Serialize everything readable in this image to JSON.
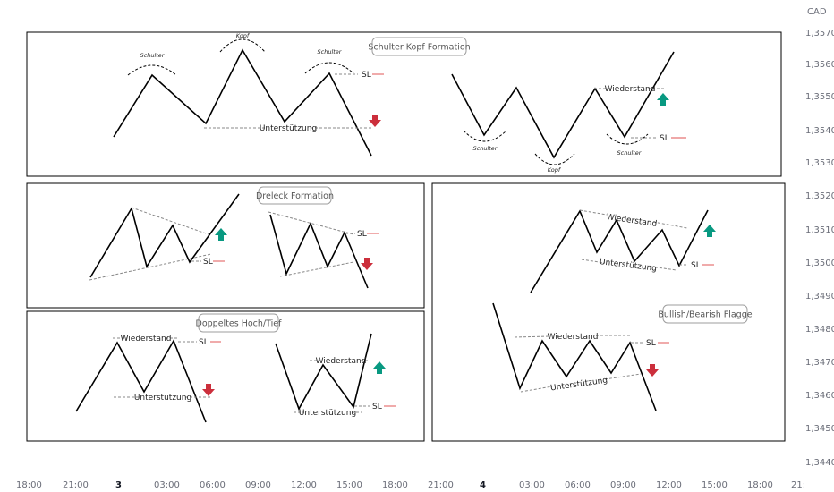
{
  "price_axis": {
    "currency": "CAD",
    "ticks": [
      "1,35700",
      "1,35600",
      "1,35500",
      "1,35400",
      "1,35300",
      "1,35200",
      "1,35100",
      "1,35000",
      "1,34900",
      "1,34800",
      "1,34700",
      "1,34600",
      "1,34500",
      "1,34400"
    ]
  },
  "time_axis": {
    "ticks": [
      "18:00",
      "21:00",
      "3",
      "03:00",
      "06:00",
      "09:00",
      "12:00",
      "15:00",
      "18:00",
      "21:00",
      "4",
      "03:00",
      "06:00",
      "09:00",
      "12:00",
      "15:00",
      "18:00",
      "21:"
    ]
  },
  "panels": {
    "head_shoulders": {
      "title": "Schulter Kopf Formation",
      "shoulder_label": "Schulter",
      "head_label": "Kopf",
      "support_label": "Unterstützung",
      "resistance_label": "Wiederstand",
      "sl_label": "SL"
    },
    "triangle": {
      "title": "Dreleck Formation",
      "sl_label": "SL"
    },
    "double": {
      "title": "Doppeltes Hoch/Tief",
      "resistance_label": "Wiederstand",
      "support_label": "Unterstützung",
      "sl_label": "SL"
    },
    "flag": {
      "title": "Bullish/Bearish Flagge",
      "resistance_label": "Wiederstand",
      "support_label": "Unterstützung",
      "sl_label": "SL"
    }
  },
  "colors": {
    "up_arrow": "#089981",
    "down_arrow": "#cc2f3c",
    "sl_line": "#e57373",
    "guide_line": "#888888",
    "pattern_line": "#000000"
  }
}
